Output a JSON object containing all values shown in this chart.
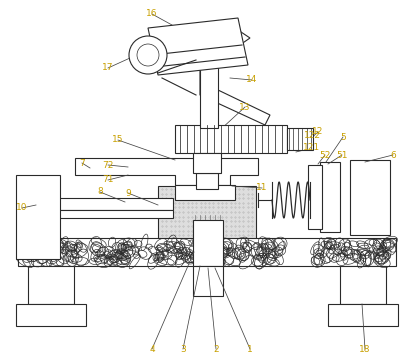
{
  "bg": "white",
  "lc": "#2a2a2a",
  "label_color": "#c8a000",
  "lw": 0.8,
  "fig_w": 4.14,
  "fig_h": 3.59,
  "dpi": 100,
  "stone_seed": 42
}
